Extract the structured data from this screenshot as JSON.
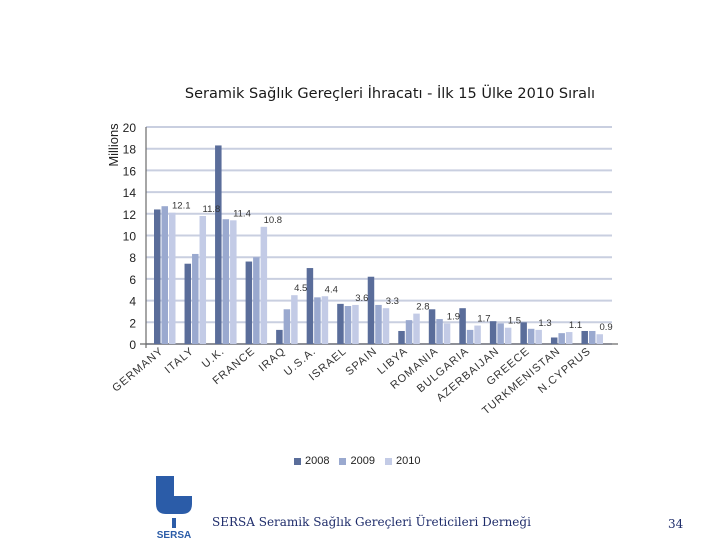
{
  "chart_data": {
    "type": "bar",
    "title": "Seramik Sağlık Gereçleri İhracatı -  İlk 15 Ülke 2010 Sıralı",
    "ylabel": "Millions",
    "ylim": [
      0,
      20
    ],
    "yticks": [
      "0",
      "2",
      "4",
      "6",
      "8",
      "10",
      "12",
      "14",
      "16",
      "18",
      "20"
    ],
    "grid": true,
    "legend_position": "bottom",
    "categories": [
      "GERMANY",
      "ITALY",
      "U.K.",
      "FRANCE",
      "IRAQ",
      "U.S.A.",
      "ISRAEL",
      "SPAIN",
      "LIBYA",
      "ROMANIA",
      "BULGARIA",
      "AZERBAIJAN",
      "GREECE",
      "TURKMENISTAN",
      "N.CYPRUS"
    ],
    "series": [
      {
        "name": "2008",
        "color": "#5a6d9a",
        "values": [
          12.4,
          7.4,
          18.3,
          7.6,
          1.3,
          7.0,
          3.7,
          6.2,
          1.2,
          3.2,
          3.3,
          2.1,
          2.0,
          0.6,
          1.2
        ]
      },
      {
        "name": "2009",
        "color": "#9aa9cf",
        "values": [
          12.7,
          8.3,
          11.5,
          8.0,
          3.2,
          4.3,
          3.5,
          3.6,
          2.2,
          2.3,
          1.3,
          1.9,
          1.4,
          1.0,
          1.2
        ]
      },
      {
        "name": "2010",
        "color": "#c3cbe6",
        "values": [
          12.1,
          11.8,
          11.4,
          10.8,
          4.5,
          4.4,
          3.6,
          3.3,
          2.8,
          1.9,
          1.7,
          1.5,
          1.3,
          1.1,
          0.9
        ]
      }
    ],
    "data_labels": [
      "12.1",
      "11.8",
      "11.4",
      "10.8",
      "4.5",
      "4.4",
      "3.6",
      "3.3",
      "2.8",
      "1.9",
      "1.7",
      "1.5",
      "1.3",
      "1.1",
      "0.9"
    ]
  },
  "footer": {
    "logo_text": "SERSA",
    "organization": "SERSA Seramik Sağlık Gereçleri Üreticileri Derneği",
    "page_number": "34"
  },
  "colors": {
    "grid": "#c9cfe0",
    "axis": "#6b6b6b",
    "footer_text": "#1f2d6b",
    "logo_blue": "#2b5ca8"
  }
}
